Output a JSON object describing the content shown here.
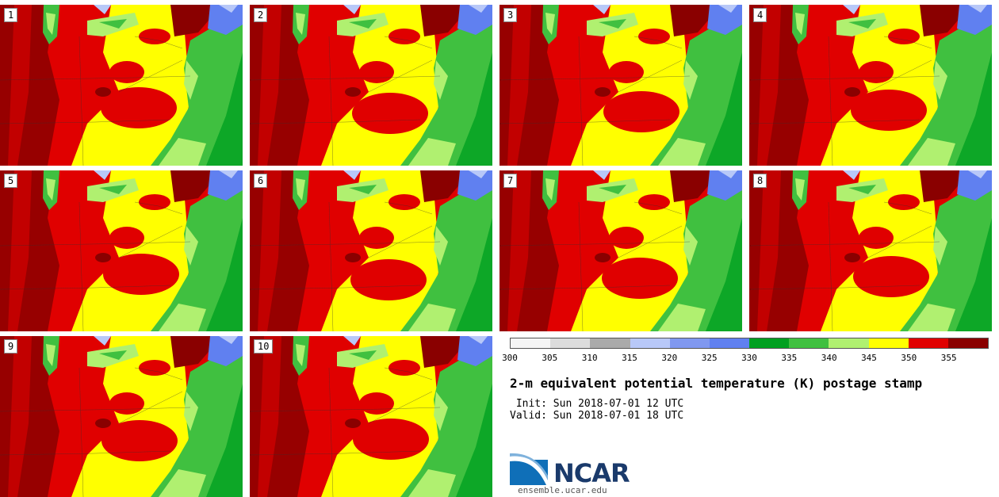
{
  "panels": [
    {
      "label": "1"
    },
    {
      "label": "2"
    },
    {
      "label": "3"
    },
    {
      "label": "4"
    },
    {
      "label": "5"
    },
    {
      "label": "6"
    },
    {
      "label": "7"
    },
    {
      "label": "8"
    },
    {
      "label": "9"
    },
    {
      "label": "10"
    }
  ],
  "colorbar": {
    "ticks": [
      "300",
      "305",
      "310",
      "315",
      "320",
      "325",
      "330",
      "335",
      "340",
      "345",
      "350",
      "355"
    ],
    "colors": [
      "#f5f5f5",
      "#dcdcdc",
      "#aaaaaa",
      "#b8c8f8",
      "#8098f0",
      "#6080f0",
      "#00a020",
      "#40c040",
      "#b0f070",
      "#ffff00",
      "#e00000",
      "#8a0000"
    ]
  },
  "title": "2-m equivalent potential temperature (K) postage stamp",
  "init": " Init: Sun 2018-07-01 12 UTC",
  "valid": "Valid: Sun 2018-07-01 18 UTC",
  "logo": {
    "text": "NCAR",
    "url": "ensemble.ucar.edu"
  }
}
